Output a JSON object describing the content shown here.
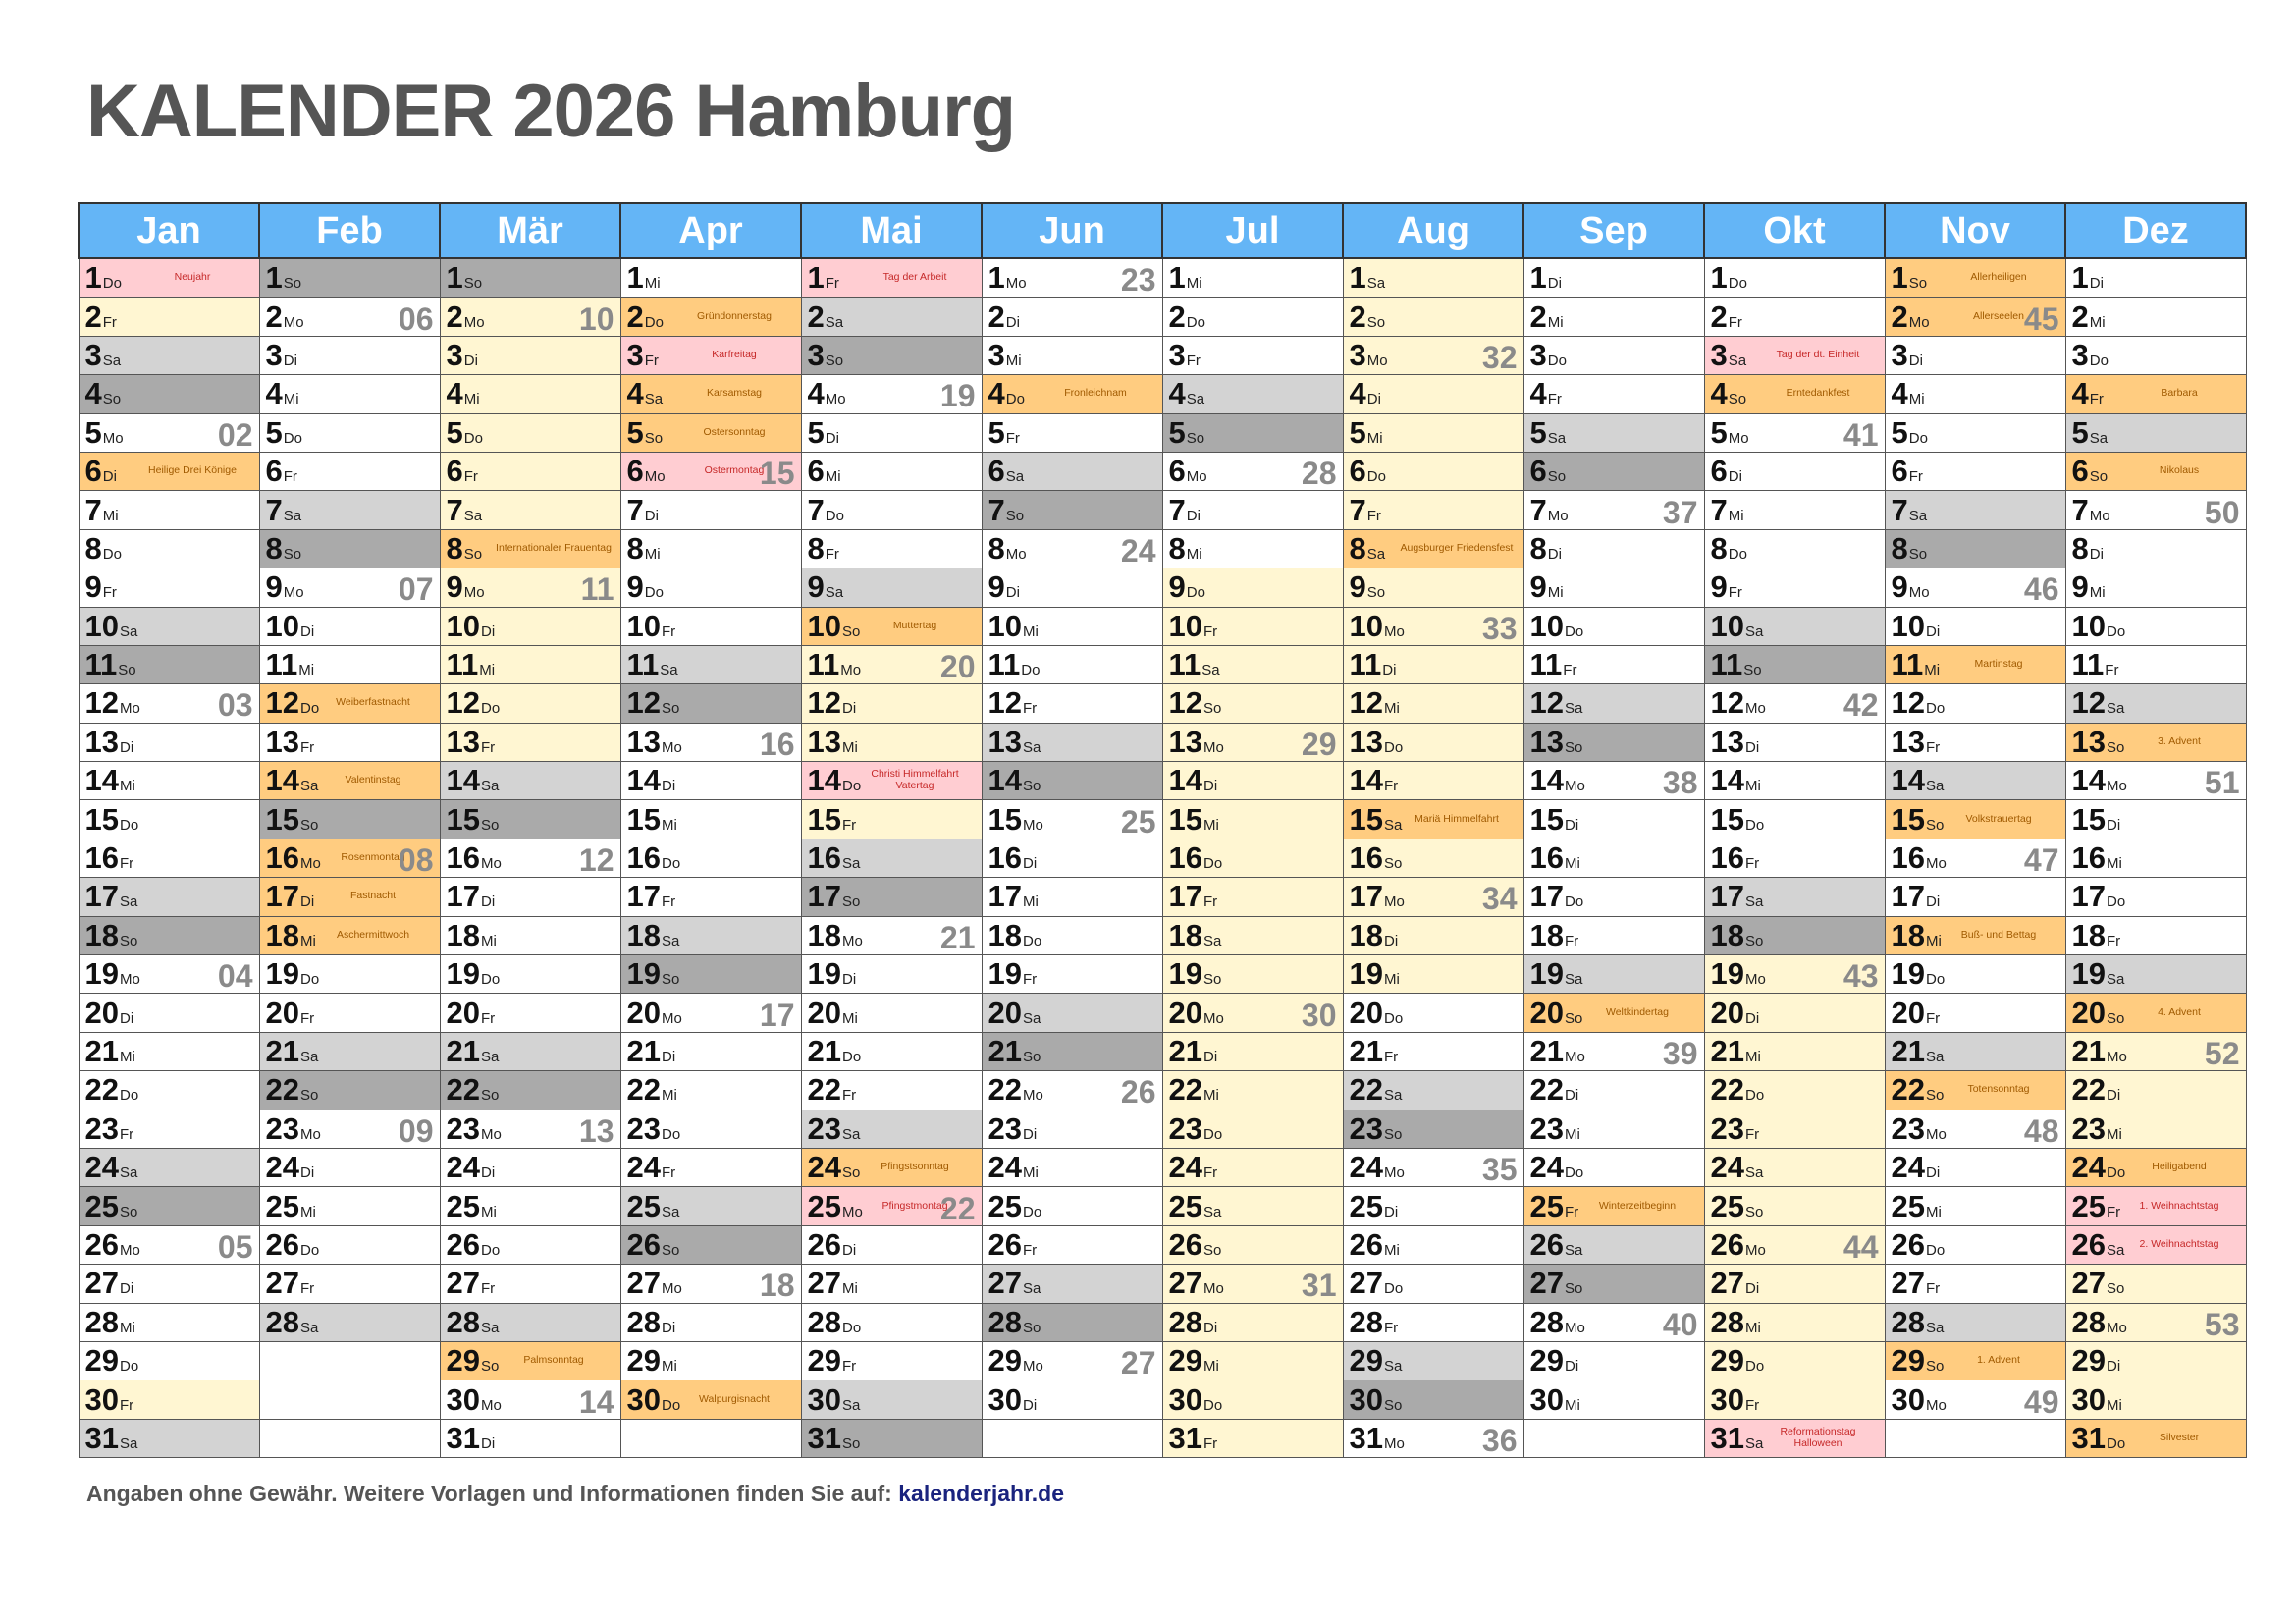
{
  "title": "KALENDER 2026 Hamburg",
  "footer": {
    "text": "Angaben ohne Gewähr. Weitere Vorlagen und Informationen finden Sie auf: ",
    "link": "kalenderjahr.de"
  },
  "colors": {
    "header": "#64b5f6",
    "saturday": "#d3d3d3",
    "sunday": "#aaaaaa",
    "holiday": "#ffcdd2",
    "special": "#ffcc80",
    "school_vacation": "#fff6d2"
  },
  "year": 2026,
  "weekday_abbr": [
    "So",
    "Mo",
    "Di",
    "Mi",
    "Do",
    "Fr",
    "Sa"
  ],
  "months": [
    "Jan",
    "Feb",
    "Mär",
    "Apr",
    "Mai",
    "Jun",
    "Jul",
    "Aug",
    "Sep",
    "Okt",
    "Nov",
    "Dez"
  ],
  "holidays": {
    "1-1": "Neujahr",
    "4-3": "Karfreitag",
    "4-6": "Ostermontag",
    "5-1": "Tag der Arbeit",
    "5-14": "Christi Himmelfahrt",
    "5-25": "Pfingstmontag",
    "10-3": "Tag der dt. Einheit",
    "10-31": "Reformationstag",
    "12-25": "1. Weihnachtstag",
    "12-26": "2. Weihnachtstag"
  },
  "special_days": {
    "1-6": "Heilige Drei Könige",
    "2-12": "Weiberfastnacht",
    "2-14": "Valentinstag",
    "2-16": "Rosenmontag",
    "2-17": "Fastnacht",
    "2-18": "Aschermittwoch",
    "3-8": "Internationaler Frauentag",
    "3-29": "Palmsonntag",
    "4-2": "Gründonnerstag",
    "4-4": "Karsamstag",
    "4-5": "Ostersonntag",
    "4-30": "Walpurgisnacht",
    "5-10": "Muttertag",
    "5-24": "Pfingstsonntag",
    "6-4": "Fronleichnam",
    "8-8": "Augsburger Friedensfest",
    "8-15": "Mariä Himmelfahrt",
    "9-20": "Weltkindertag",
    "9-25": "Winterzeitbeginn",
    "10-4": "Erntedankfest",
    "11-1": "Allerheiligen",
    "11-2": "Allerseelen",
    "11-11": "Martinstag",
    "11-15": "Volkstrauertag",
    "11-18": "Buß- und Bettag",
    "11-22": "Totensonntag",
    "11-29": "1. Advent",
    "12-4": "Barbara",
    "12-6": "Nikolaus",
    "12-13": "3. Advent",
    "12-20": "4. Advent",
    "12-24": "Heiligabend",
    "12-31": "Silvester"
  },
  "second_labels": {
    "5-14": "Vatertag",
    "10-31": "Halloween"
  },
  "school_vacations": [
    {
      "from": "1-1",
      "to": "1-2"
    },
    {
      "from": "1-30",
      "to": "1-30"
    },
    {
      "from": "3-2",
      "to": "3-13"
    },
    {
      "from": "5-11",
      "to": "5-15"
    },
    {
      "from": "7-9",
      "to": "8-19"
    },
    {
      "from": "10-19",
      "to": "10-30"
    },
    {
      "from": "12-21",
      "to": "12-31"
    }
  ]
}
